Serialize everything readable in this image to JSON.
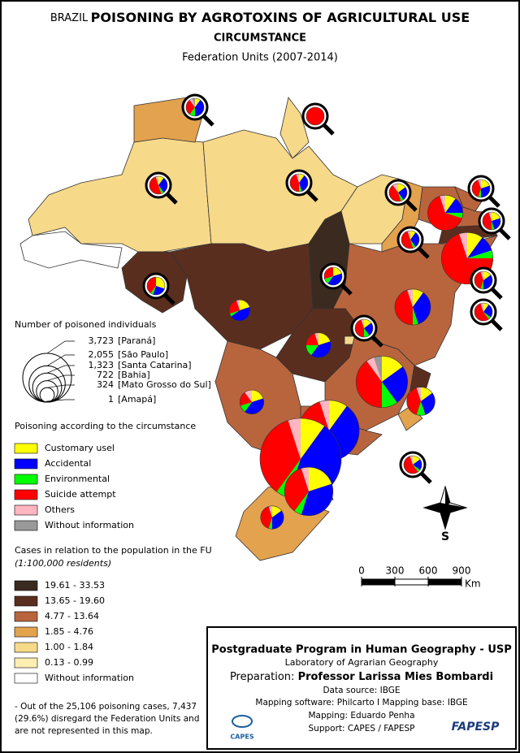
{
  "header": {
    "country": "BRAZIL",
    "title": "POISONING BY AGROTOXINS OF AGRICULTURAL USE",
    "subtitle": "CIRCUMSTANCE",
    "period": "Federation Units (2007-2014)"
  },
  "size_legend": {
    "title": "Number of poisoned individuals",
    "entries": [
      {
        "value": 3723,
        "label": "3,723",
        "place": "[Paraná]"
      },
      {
        "value": 2055,
        "label": "2,055",
        "place": "[São Paulo]"
      },
      {
        "value": 1323,
        "label": "1,323",
        "place": "[Santa Catarina]"
      },
      {
        "value": 722,
        "label": "722",
        "place": "[Bahia]"
      },
      {
        "value": 324,
        "label": "324",
        "place": "[Mato Grosso do Sul]"
      },
      {
        "value": 1,
        "label": "1",
        "place": "[Amapá]"
      }
    ]
  },
  "circumstances": {
    "title": "Poisoning according to the circumstance",
    "items": [
      {
        "name": "Customary usel",
        "color": "#ffff00"
      },
      {
        "name": "Accidental",
        "color": "#0000ff"
      },
      {
        "name": "Environmental",
        "color": "#00ff00"
      },
      {
        "name": "Suicide attempt",
        "color": "#ff0000"
      },
      {
        "name": "Others",
        "color": "#ffb6c1"
      },
      {
        "name": "Without information",
        "color": "#999999"
      }
    ]
  },
  "rate_legend": {
    "title": "Cases in relation to the population in the FU",
    "subtitle": "(1:100,000 residents)",
    "classes": [
      {
        "label": "19.61 - 33.53",
        "color": "#3b2a20"
      },
      {
        "label": "13.65 - 19.60",
        "color": "#5a2e1f"
      },
      {
        "label": "4.77 - 13.64",
        "color": "#b8653e"
      },
      {
        "label": "1.85 - 4.76",
        "color": "#e3a24e"
      },
      {
        "label": "1.00 - 1.84",
        "color": "#f7d98a"
      },
      {
        "label": "0.13 - 0.99",
        "color": "#fbeeb0"
      },
      {
        "label": "Without information",
        "color": "#ffffff"
      }
    ]
  },
  "pies": [
    {
      "cases": 30,
      "shares": [
        10,
        40,
        10,
        30,
        5,
        5
      ]
    },
    {
      "cases": 1,
      "shares": [
        0,
        0,
        0,
        100,
        0,
        0
      ]
    },
    {
      "cases": 40,
      "shares": [
        10,
        30,
        5,
        50,
        5,
        0
      ]
    },
    {
      "cases": 60,
      "shares": [
        10,
        35,
        5,
        45,
        5,
        0
      ]
    },
    {
      "cases": 50,
      "shares": [
        15,
        25,
        5,
        45,
        10,
        0
      ]
    },
    {
      "cases": 700,
      "shares": [
        10,
        15,
        5,
        65,
        5,
        0
      ]
    },
    {
      "cases": 80,
      "shares": [
        20,
        30,
        5,
        40,
        5,
        0
      ]
    },
    {
      "cases": 90,
      "shares": [
        20,
        25,
        5,
        45,
        5,
        0
      ]
    },
    {
      "cases": 1500,
      "shares": [
        10,
        10,
        5,
        70,
        5,
        0
      ]
    },
    {
      "cases": 90,
      "shares": [
        10,
        30,
        5,
        50,
        5,
        0
      ]
    },
    {
      "cases": 60,
      "shares": [
        15,
        35,
        5,
        40,
        5,
        0
      ]
    },
    {
      "cases": 40,
      "shares": [
        10,
        25,
        5,
        55,
        5,
        0
      ]
    },
    {
      "cases": 80,
      "shares": [
        20,
        40,
        10,
        30,
        0,
        0
      ]
    },
    {
      "cases": 60,
      "shares": [
        30,
        25,
        5,
        40,
        0,
        0
      ]
    },
    {
      "cases": 250,
      "shares": [
        20,
        45,
        5,
        25,
        5,
        0
      ]
    },
    {
      "cases": 722,
      "shares": [
        10,
        35,
        5,
        45,
        5,
        0
      ]
    },
    {
      "cases": 350,
      "shares": [
        20,
        40,
        15,
        20,
        5,
        0
      ]
    },
    {
      "cases": 40,
      "shares": [
        15,
        25,
        10,
        45,
        5,
        0
      ]
    },
    {
      "cases": 1500,
      "shares": [
        15,
        25,
        10,
        40,
        5,
        5
      ]
    },
    {
      "cases": 324,
      "shares": [
        20,
        40,
        10,
        20,
        10,
        0
      ]
    },
    {
      "cases": 450,
      "shares": [
        15,
        30,
        10,
        40,
        5,
        0
      ]
    },
    {
      "cases": 50,
      "shares": [
        15,
        20,
        5,
        55,
        5,
        0
      ]
    },
    {
      "cases": 2055,
      "shares": [
        10,
        40,
        10,
        35,
        5,
        0
      ]
    },
    {
      "cases": 3723,
      "shares": [
        10,
        45,
        5,
        35,
        5,
        0
      ]
    },
    {
      "cases": 1323,
      "shares": [
        20,
        35,
        5,
        35,
        5,
        0
      ]
    },
    {
      "cases": 300,
      "shares": [
        15,
        35,
        5,
        40,
        5,
        0
      ]
    }
  ],
  "compass": {
    "label": "S"
  },
  "scale": {
    "ticks": [
      0,
      300,
      600,
      900
    ],
    "unit": "Km"
  },
  "note": [
    "- Out of the 25,106 poisoning cases, 7,437",
    "(29.6%) disregard the Federation Units and",
    "are not represented in this map."
  ],
  "credits": {
    "program": "Postgraduate Program in Human Geography - USP",
    "lab": "Laboratory of Agrarian Geography",
    "prep_label": "Preparation:",
    "author": "Professor Larissa Mies Bombardi",
    "source": "Data source: IBGE",
    "software": "Mapping software: Philcarto I Mapping base: IBGE",
    "mapping": "Mapping: Eduardo Penha",
    "support": "Support: CAPES / FAPESP",
    "logo1": "CAPES",
    "logo2": "FAPESP"
  }
}
